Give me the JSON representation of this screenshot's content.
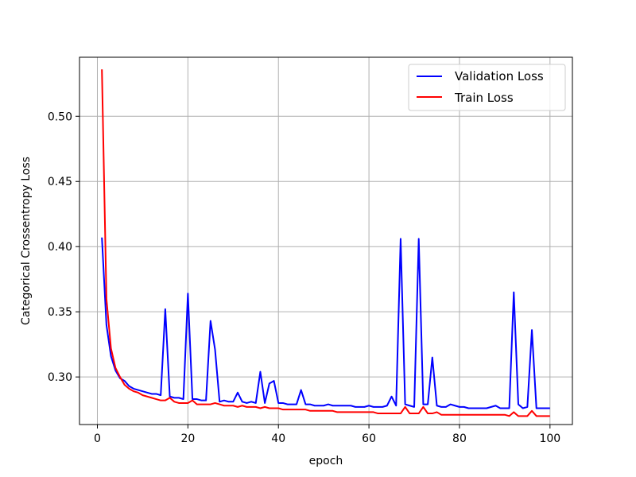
{
  "chart_data": {
    "type": "line",
    "xlabel": "epoch",
    "ylabel": "Categorical Crossentropy Loss",
    "xlim": [
      -3.95,
      104.95
    ],
    "ylim": [
      0.2635,
      0.5453
    ],
    "xticks": [
      0,
      20,
      40,
      60,
      80,
      100
    ],
    "yticks": [
      0.3,
      0.35,
      0.4,
      0.45,
      0.5
    ],
    "ytick_labels": [
      "0.30",
      "0.35",
      "0.40",
      "0.45",
      "0.50"
    ],
    "grid": true,
    "legend_position": "top-right",
    "x": [
      1,
      2,
      3,
      4,
      5,
      6,
      7,
      8,
      9,
      10,
      11,
      12,
      13,
      14,
      15,
      16,
      17,
      18,
      19,
      20,
      21,
      22,
      23,
      24,
      25,
      26,
      27,
      28,
      29,
      30,
      31,
      32,
      33,
      34,
      35,
      36,
      37,
      38,
      39,
      40,
      41,
      42,
      43,
      44,
      45,
      46,
      47,
      48,
      49,
      50,
      51,
      52,
      53,
      54,
      55,
      56,
      57,
      58,
      59,
      60,
      61,
      62,
      63,
      64,
      65,
      66,
      67,
      68,
      69,
      70,
      71,
      72,
      73,
      74,
      75,
      76,
      77,
      78,
      79,
      80,
      81,
      82,
      83,
      84,
      85,
      86,
      87,
      88,
      89,
      90,
      91,
      92,
      93,
      94,
      95,
      96,
      97,
      98,
      99,
      100
    ],
    "series": [
      {
        "name": "Validation Loss",
        "color": "#0000ff",
        "values": [
          0.407,
          0.34,
          0.316,
          0.305,
          0.299,
          0.297,
          0.293,
          0.291,
          0.29,
          0.289,
          0.288,
          0.287,
          0.287,
          0.286,
          0.352,
          0.285,
          0.284,
          0.284,
          0.283,
          0.364,
          0.283,
          0.283,
          0.282,
          0.282,
          0.343,
          0.321,
          0.281,
          0.282,
          0.281,
          0.281,
          0.288,
          0.281,
          0.28,
          0.281,
          0.28,
          0.304,
          0.28,
          0.295,
          0.297,
          0.28,
          0.28,
          0.279,
          0.279,
          0.279,
          0.29,
          0.279,
          0.279,
          0.278,
          0.278,
          0.278,
          0.279,
          0.278,
          0.278,
          0.278,
          0.278,
          0.278,
          0.277,
          0.277,
          0.277,
          0.278,
          0.277,
          0.277,
          0.277,
          0.278,
          0.285,
          0.278,
          0.406,
          0.279,
          0.278,
          0.277,
          0.406,
          0.279,
          0.279,
          0.315,
          0.278,
          0.277,
          0.277,
          0.279,
          0.278,
          0.277,
          0.277,
          0.276,
          0.276,
          0.276,
          0.276,
          0.276,
          0.277,
          0.278,
          0.276,
          0.276,
          0.276,
          0.365,
          0.279,
          0.276,
          0.277,
          0.336,
          0.276,
          0.276,
          0.276,
          0.276
        ]
      },
      {
        "name": "Train Loss",
        "color": "#ff0000",
        "values": [
          0.536,
          0.36,
          0.322,
          0.307,
          0.3,
          0.294,
          0.291,
          0.289,
          0.288,
          0.286,
          0.285,
          0.284,
          0.283,
          0.282,
          0.282,
          0.284,
          0.281,
          0.28,
          0.28,
          0.28,
          0.282,
          0.279,
          0.279,
          0.279,
          0.279,
          0.28,
          0.279,
          0.278,
          0.278,
          0.278,
          0.277,
          0.278,
          0.277,
          0.277,
          0.277,
          0.276,
          0.277,
          0.276,
          0.276,
          0.276,
          0.275,
          0.275,
          0.275,
          0.275,
          0.275,
          0.275,
          0.274,
          0.274,
          0.274,
          0.274,
          0.274,
          0.274,
          0.273,
          0.273,
          0.273,
          0.273,
          0.273,
          0.273,
          0.273,
          0.273,
          0.273,
          0.272,
          0.272,
          0.272,
          0.272,
          0.272,
          0.272,
          0.277,
          0.272,
          0.272,
          0.272,
          0.277,
          0.272,
          0.272,
          0.273,
          0.271,
          0.271,
          0.271,
          0.271,
          0.271,
          0.271,
          0.271,
          0.271,
          0.271,
          0.271,
          0.271,
          0.271,
          0.271,
          0.271,
          0.271,
          0.27,
          0.273,
          0.27,
          0.27,
          0.27,
          0.274,
          0.27,
          0.27,
          0.27,
          0.27
        ]
      }
    ]
  },
  "colors": {
    "grid": "#b0b0b0",
    "axes": "#000000",
    "background": "#ffffff"
  }
}
